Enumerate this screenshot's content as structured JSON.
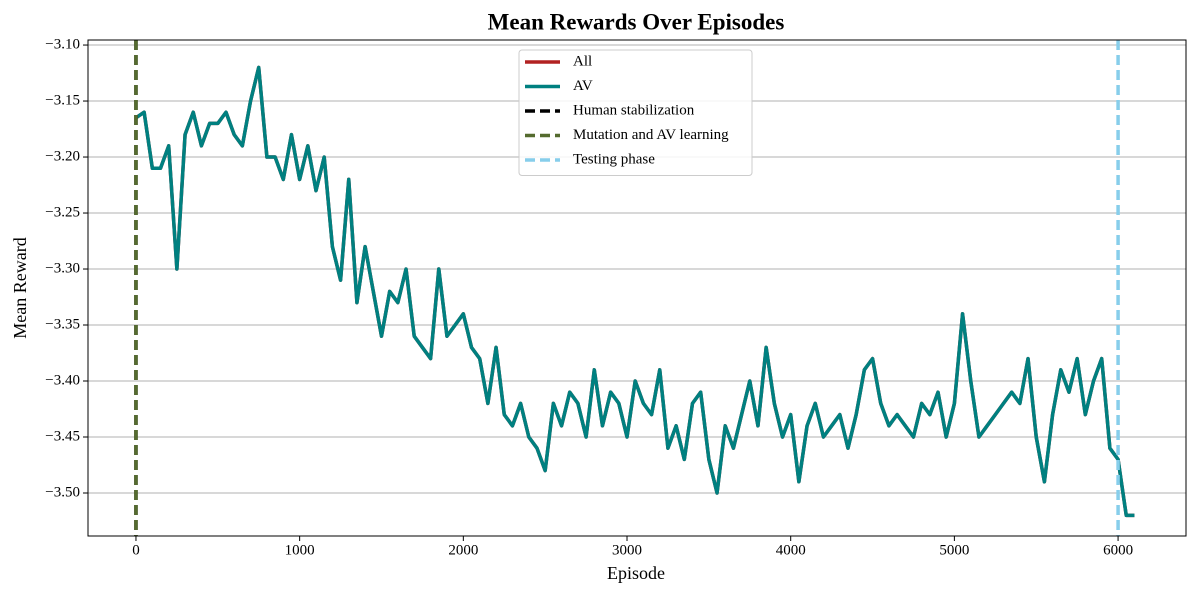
{
  "chart_data": {
    "type": "line",
    "title": "Mean Rewards Over Episodes",
    "x_label": "Episode",
    "y_label": "Mean Reward",
    "x": [
      0,
      50,
      100,
      150,
      200,
      250,
      300,
      350,
      400,
      450,
      500,
      550,
      600,
      650,
      700,
      750,
      800,
      850,
      900,
      950,
      1000,
      1050,
      1100,
      1150,
      1200,
      1250,
      1300,
      1350,
      1400,
      1450,
      1500,
      1550,
      1600,
      1650,
      1700,
      1750,
      1800,
      1850,
      1900,
      1950,
      2000,
      2050,
      2100,
      2150,
      2200,
      2250,
      2300,
      2350,
      2400,
      2450,
      2500,
      2550,
      2600,
      2650,
      2700,
      2750,
      2800,
      2850,
      2900,
      2950,
      3000,
      3050,
      3100,
      3150,
      3200,
      3250,
      3300,
      3350,
      3400,
      3450,
      3500,
      3550,
      3600,
      3650,
      3700,
      3750,
      3800,
      3850,
      3900,
      3950,
      4000,
      4050,
      4100,
      4150,
      4200,
      4250,
      4300,
      4350,
      4400,
      4450,
      4500,
      4550,
      4600,
      4650,
      4700,
      4750,
      4800,
      4850,
      4900,
      4950,
      5000,
      5050,
      5100,
      5150,
      5200,
      5250,
      5300,
      5350,
      5400,
      5450,
      5500,
      5550,
      5600,
      5650,
      5700,
      5750,
      5800,
      5850,
      5900,
      5950,
      6000,
      6050,
      6100
    ],
    "series": [
      {
        "name": "All",
        "color": "#b22222",
        "values": [
          -3.165,
          -3.16,
          -3.21,
          -3.21,
          -3.19,
          -3.3,
          -3.18,
          -3.16,
          -3.19,
          -3.17,
          -3.17,
          -3.16,
          -3.18,
          -3.19,
          -3.15,
          -3.12,
          -3.2,
          -3.2,
          -3.22,
          -3.18,
          -3.22,
          -3.19,
          -3.23,
          -3.2,
          -3.28,
          -3.31,
          -3.22,
          -3.33,
          -3.28,
          -3.32,
          -3.36,
          -3.32,
          -3.33,
          -3.3,
          -3.36,
          -3.37,
          -3.38,
          -3.3,
          -3.36,
          -3.35,
          -3.34,
          -3.37,
          -3.38,
          -3.42,
          -3.37,
          -3.43,
          -3.44,
          -3.42,
          -3.45,
          -3.46,
          -3.48,
          -3.42,
          -3.44,
          -3.41,
          -3.42,
          -3.45,
          -3.39,
          -3.44,
          -3.41,
          -3.42,
          -3.45,
          -3.4,
          -3.42,
          -3.43,
          -3.39,
          -3.46,
          -3.44,
          -3.47,
          -3.42,
          -3.41,
          -3.47,
          -3.5,
          -3.44,
          -3.46,
          -3.43,
          -3.4,
          -3.44,
          -3.37,
          -3.42,
          -3.45,
          -3.43,
          -3.49,
          -3.44,
          -3.42,
          -3.45,
          -3.44,
          -3.43,
          -3.46,
          -3.43,
          -3.39,
          -3.38,
          -3.42,
          -3.44,
          -3.43,
          -3.44,
          -3.45,
          -3.42,
          -3.43,
          -3.41,
          -3.45,
          -3.42,
          -3.34,
          -3.4,
          -3.45,
          -3.44,
          -3.43,
          -3.42,
          -3.41,
          -3.42,
          -3.38,
          -3.45,
          -3.49,
          -3.43,
          -3.39,
          -3.41,
          -3.38,
          -3.43,
          -3.4,
          -3.38,
          -3.46,
          -3.47,
          -3.52,
          -3.52
        ]
      },
      {
        "name": "AV",
        "color": "#008080",
        "values": [
          -3.165,
          -3.16,
          -3.21,
          -3.21,
          -3.19,
          -3.3,
          -3.18,
          -3.16,
          -3.19,
          -3.17,
          -3.17,
          -3.16,
          -3.18,
          -3.19,
          -3.15,
          -3.12,
          -3.2,
          -3.2,
          -3.22,
          -3.18,
          -3.22,
          -3.19,
          -3.23,
          -3.2,
          -3.28,
          -3.31,
          -3.22,
          -3.33,
          -3.28,
          -3.32,
          -3.36,
          -3.32,
          -3.33,
          -3.3,
          -3.36,
          -3.37,
          -3.38,
          -3.3,
          -3.36,
          -3.35,
          -3.34,
          -3.37,
          -3.38,
          -3.42,
          -3.37,
          -3.43,
          -3.44,
          -3.42,
          -3.45,
          -3.46,
          -3.48,
          -3.42,
          -3.44,
          -3.41,
          -3.42,
          -3.45,
          -3.39,
          -3.44,
          -3.41,
          -3.42,
          -3.45,
          -3.4,
          -3.42,
          -3.43,
          -3.39,
          -3.46,
          -3.44,
          -3.47,
          -3.42,
          -3.41,
          -3.47,
          -3.5,
          -3.44,
          -3.46,
          -3.43,
          -3.4,
          -3.44,
          -3.37,
          -3.42,
          -3.45,
          -3.43,
          -3.49,
          -3.44,
          -3.42,
          -3.45,
          -3.44,
          -3.43,
          -3.46,
          -3.43,
          -3.39,
          -3.38,
          -3.42,
          -3.44,
          -3.43,
          -3.44,
          -3.45,
          -3.42,
          -3.43,
          -3.41,
          -3.45,
          -3.42,
          -3.34,
          -3.4,
          -3.45,
          -3.44,
          -3.43,
          -3.42,
          -3.41,
          -3.42,
          -3.38,
          -3.45,
          -3.49,
          -3.43,
          -3.39,
          -3.41,
          -3.38,
          -3.43,
          -3.4,
          -3.38,
          -3.46,
          -3.47,
          -3.52,
          -3.52
        ]
      }
    ],
    "vlines": [
      {
        "name": "Human stabilization",
        "color": "#000000",
        "x": 0
      },
      {
        "name": "Mutation and AV learning",
        "color": "#556b2f",
        "x": 0
      },
      {
        "name": "Testing phase",
        "color": "#87ceeb",
        "x": 6000
      }
    ],
    "xlim": [
      -293,
      6415
    ],
    "ylim": [
      -3.5384,
      -3.0955
    ],
    "xticks": [
      0,
      1000,
      2000,
      3000,
      4000,
      5000,
      6000
    ],
    "yticks": [
      {
        "value": -3.1,
        "label": "−3.10"
      },
      {
        "value": -3.15,
        "label": "−3.15"
      },
      {
        "value": -3.2,
        "label": "−3.20"
      },
      {
        "value": -3.25,
        "label": "−3.25"
      },
      {
        "value": -3.3,
        "label": "−3.30"
      },
      {
        "value": -3.35,
        "label": "−3.35"
      },
      {
        "value": -3.4,
        "label": "−3.40"
      },
      {
        "value": -3.45,
        "label": "−3.45"
      },
      {
        "value": -3.5,
        "label": "−3.50"
      }
    ],
    "grid": "y",
    "legend": "upper center"
  }
}
